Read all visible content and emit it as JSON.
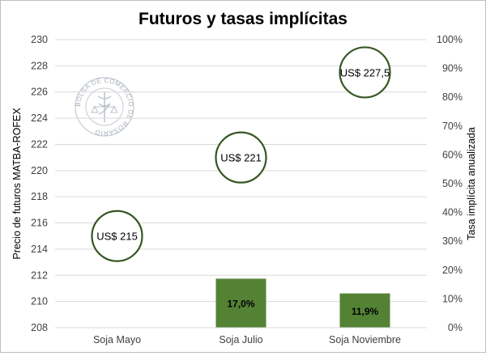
{
  "chart_data": {
    "type": "bar",
    "title": "Futuros y tasas implícitas",
    "categories": [
      "Soja Mayo",
      "Soja Julio",
      "Soja Noviembre"
    ],
    "y_left": {
      "label": "Precio de futuros MATBA-ROFEX",
      "range": [
        208,
        230
      ],
      "step": 2,
      "ticks": [
        "208",
        "210",
        "212",
        "214",
        "216",
        "218",
        "220",
        "222",
        "224",
        "226",
        "228",
        "230"
      ]
    },
    "y_right": {
      "label": "Tasa implícita  anualizada",
      "range": [
        0,
        100
      ],
      "step": 10,
      "ticks": [
        "0%",
        "10%",
        "20%",
        "30%",
        "40%",
        "50%",
        "60%",
        "70%",
        "80%",
        "90%",
        "100%"
      ]
    },
    "series": [
      {
        "kind": "bubble",
        "axis": "left",
        "values": [
          215,
          221,
          227.5
        ],
        "labels": [
          "US$ 215",
          "US$ 221",
          "US$ 227,5"
        ],
        "color": "#375623"
      },
      {
        "kind": "bar",
        "axis": "right",
        "values": [
          null,
          17.0,
          11.9
        ],
        "labels": [
          "",
          "17,0%",
          "11,9%"
        ],
        "color": "#548235"
      }
    ],
    "grid": true,
    "legend": "none",
    "watermark_text": "BOLSA DE COMERCIO DE ROSARIO"
  }
}
